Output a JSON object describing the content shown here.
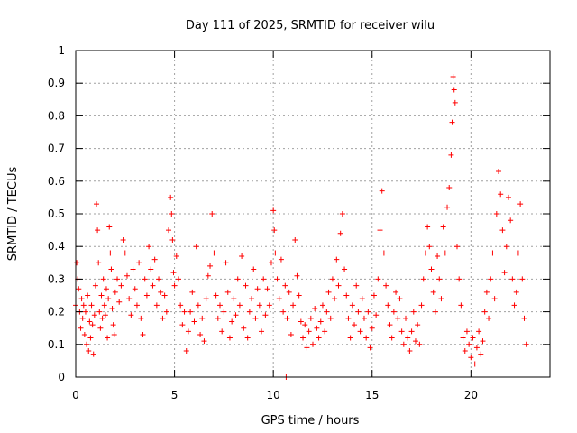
{
  "chart_data": {
    "type": "scatter",
    "title": "Day 111 of 2025, SRMTID for receiver wilu",
    "xlabel": "GPS time / hours",
    "ylabel": "SRMTID / TECUs",
    "xlim": [
      0,
      24
    ],
    "ylim": [
      0,
      1
    ],
    "x_ticks": [
      0,
      5,
      10,
      15,
      20
    ],
    "y_ticks": [
      0,
      0.1,
      0.2,
      0.3,
      0.4,
      0.5,
      0.6,
      0.7,
      0.8,
      0.9,
      1
    ],
    "grid": true,
    "marker": "+",
    "color": "#ff0000",
    "series": [
      {
        "name": "SRMTID",
        "points": [
          [
            0.0,
            0.22
          ],
          [
            0.05,
            0.35
          ],
          [
            0.1,
            0.3
          ],
          [
            0.15,
            0.27
          ],
          [
            0.2,
            0.2
          ],
          [
            0.25,
            0.15
          ],
          [
            0.3,
            0.24
          ],
          [
            0.35,
            0.18
          ],
          [
            0.4,
            0.22
          ],
          [
            0.45,
            0.13
          ],
          [
            0.5,
            0.2
          ],
          [
            0.55,
            0.1
          ],
          [
            0.6,
            0.25
          ],
          [
            0.65,
            0.08
          ],
          [
            0.7,
            0.17
          ],
          [
            0.75,
            0.12
          ],
          [
            0.8,
            0.22
          ],
          [
            0.85,
            0.16
          ],
          [
            0.9,
            0.07
          ],
          [
            0.95,
            0.19
          ],
          [
            1.0,
            0.28
          ],
          [
            1.05,
            0.53
          ],
          [
            1.1,
            0.45
          ],
          [
            1.15,
            0.35
          ],
          [
            1.2,
            0.2
          ],
          [
            1.25,
            0.15
          ],
          [
            1.3,
            0.25
          ],
          [
            1.35,
            0.18
          ],
          [
            1.4,
            0.3
          ],
          [
            1.45,
            0.22
          ],
          [
            1.5,
            0.19
          ],
          [
            1.55,
            0.27
          ],
          [
            1.6,
            0.12
          ],
          [
            1.65,
            0.24
          ],
          [
            1.7,
            0.46
          ],
          [
            1.75,
            0.38
          ],
          [
            1.8,
            0.33
          ],
          [
            1.85,
            0.21
          ],
          [
            1.9,
            0.16
          ],
          [
            1.95,
            0.13
          ],
          [
            2.0,
            0.26
          ],
          [
            2.1,
            0.3
          ],
          [
            2.2,
            0.23
          ],
          [
            2.3,
            0.28
          ],
          [
            2.4,
            0.42
          ],
          [
            2.5,
            0.38
          ],
          [
            2.6,
            0.31
          ],
          [
            2.7,
            0.24
          ],
          [
            2.8,
            0.19
          ],
          [
            2.9,
            0.33
          ],
          [
            3.0,
            0.27
          ],
          [
            3.1,
            0.22
          ],
          [
            3.2,
            0.35
          ],
          [
            3.3,
            0.18
          ],
          [
            3.4,
            0.13
          ],
          [
            3.5,
            0.3
          ],
          [
            3.6,
            0.25
          ],
          [
            3.7,
            0.4
          ],
          [
            3.8,
            0.33
          ],
          [
            3.9,
            0.28
          ],
          [
            4.0,
            0.36
          ],
          [
            4.1,
            0.22
          ],
          [
            4.2,
            0.3
          ],
          [
            4.3,
            0.26
          ],
          [
            4.4,
            0.18
          ],
          [
            4.5,
            0.25
          ],
          [
            4.6,
            0.2
          ],
          [
            4.7,
            0.45
          ],
          [
            4.8,
            0.55
          ],
          [
            4.85,
            0.5
          ],
          [
            4.9,
            0.42
          ],
          [
            4.95,
            0.32
          ],
          [
            5.0,
            0.28
          ],
          [
            5.1,
            0.37
          ],
          [
            5.2,
            0.3
          ],
          [
            5.3,
            0.22
          ],
          [
            5.4,
            0.16
          ],
          [
            5.5,
            0.2
          ],
          [
            5.6,
            0.08
          ],
          [
            5.7,
            0.14
          ],
          [
            5.8,
            0.2
          ],
          [
            5.9,
            0.26
          ],
          [
            6.0,
            0.17
          ],
          [
            6.1,
            0.4
          ],
          [
            6.2,
            0.22
          ],
          [
            6.3,
            0.13
          ],
          [
            6.4,
            0.18
          ],
          [
            6.5,
            0.11
          ],
          [
            6.6,
            0.24
          ],
          [
            6.7,
            0.31
          ],
          [
            6.8,
            0.34
          ],
          [
            6.9,
            0.5
          ],
          [
            7.0,
            0.38
          ],
          [
            7.1,
            0.25
          ],
          [
            7.2,
            0.18
          ],
          [
            7.3,
            0.22
          ],
          [
            7.4,
            0.14
          ],
          [
            7.5,
            0.2
          ],
          [
            7.6,
            0.35
          ],
          [
            7.7,
            0.26
          ],
          [
            7.8,
            0.12
          ],
          [
            7.9,
            0.17
          ],
          [
            8.0,
            0.24
          ],
          [
            8.1,
            0.19
          ],
          [
            8.2,
            0.3
          ],
          [
            8.3,
            0.22
          ],
          [
            8.4,
            0.37
          ],
          [
            8.5,
            0.15
          ],
          [
            8.6,
            0.28
          ],
          [
            8.7,
            0.12
          ],
          [
            8.8,
            0.2
          ],
          [
            8.9,
            0.24
          ],
          [
            9.0,
            0.33
          ],
          [
            9.1,
            0.18
          ],
          [
            9.2,
            0.27
          ],
          [
            9.3,
            0.22
          ],
          [
            9.4,
            0.14
          ],
          [
            9.5,
            0.3
          ],
          [
            9.6,
            0.19
          ],
          [
            9.7,
            0.27
          ],
          [
            9.8,
            0.22
          ],
          [
            9.9,
            0.35
          ],
          [
            10.0,
            0.51
          ],
          [
            10.05,
            0.45
          ],
          [
            10.1,
            0.38
          ],
          [
            10.2,
            0.3
          ],
          [
            10.3,
            0.24
          ],
          [
            10.4,
            0.36
          ],
          [
            10.5,
            0.2
          ],
          [
            10.6,
            0.28
          ],
          [
            10.65,
            0.0
          ],
          [
            10.7,
            0.18
          ],
          [
            10.8,
            0.26
          ],
          [
            10.9,
            0.13
          ],
          [
            11.0,
            0.22
          ],
          [
            11.1,
            0.42
          ],
          [
            11.2,
            0.31
          ],
          [
            11.3,
            0.25
          ],
          [
            11.4,
            0.17
          ],
          [
            11.5,
            0.12
          ],
          [
            11.6,
            0.16
          ],
          [
            11.7,
            0.09
          ],
          [
            11.8,
            0.14
          ],
          [
            11.9,
            0.18
          ],
          [
            12.0,
            0.1
          ],
          [
            12.1,
            0.21
          ],
          [
            12.2,
            0.15
          ],
          [
            12.3,
            0.12
          ],
          [
            12.4,
            0.17
          ],
          [
            12.5,
            0.22
          ],
          [
            12.6,
            0.14
          ],
          [
            12.7,
            0.2
          ],
          [
            12.8,
            0.26
          ],
          [
            12.9,
            0.18
          ],
          [
            13.0,
            0.3
          ],
          [
            13.1,
            0.24
          ],
          [
            13.2,
            0.36
          ],
          [
            13.3,
            0.28
          ],
          [
            13.4,
            0.44
          ],
          [
            13.5,
            0.5
          ],
          [
            13.6,
            0.33
          ],
          [
            13.7,
            0.25
          ],
          [
            13.8,
            0.18
          ],
          [
            13.9,
            0.12
          ],
          [
            14.0,
            0.22
          ],
          [
            14.1,
            0.16
          ],
          [
            14.2,
            0.28
          ],
          [
            14.3,
            0.2
          ],
          [
            14.4,
            0.14
          ],
          [
            14.5,
            0.24
          ],
          [
            14.6,
            0.18
          ],
          [
            14.7,
            0.12
          ],
          [
            14.8,
            0.2
          ],
          [
            14.9,
            0.09
          ],
          [
            15.0,
            0.15
          ],
          [
            15.1,
            0.25
          ],
          [
            15.2,
            0.19
          ],
          [
            15.3,
            0.3
          ],
          [
            15.4,
            0.45
          ],
          [
            15.5,
            0.57
          ],
          [
            15.6,
            0.38
          ],
          [
            15.7,
            0.28
          ],
          [
            15.8,
            0.22
          ],
          [
            15.9,
            0.16
          ],
          [
            16.0,
            0.12
          ],
          [
            16.1,
            0.2
          ],
          [
            16.2,
            0.26
          ],
          [
            16.3,
            0.18
          ],
          [
            16.4,
            0.24
          ],
          [
            16.5,
            0.14
          ],
          [
            16.6,
            0.1
          ],
          [
            16.7,
            0.18
          ],
          [
            16.8,
            0.12
          ],
          [
            16.9,
            0.08
          ],
          [
            17.0,
            0.14
          ],
          [
            17.1,
            0.2
          ],
          [
            17.2,
            0.11
          ],
          [
            17.3,
            0.16
          ],
          [
            17.4,
            0.1
          ],
          [
            17.5,
            0.22
          ],
          [
            17.6,
            0.3
          ],
          [
            17.7,
            0.38
          ],
          [
            17.8,
            0.46
          ],
          [
            17.9,
            0.4
          ],
          [
            18.0,
            0.33
          ],
          [
            18.1,
            0.26
          ],
          [
            18.2,
            0.2
          ],
          [
            18.3,
            0.37
          ],
          [
            18.4,
            0.3
          ],
          [
            18.5,
            0.24
          ],
          [
            18.6,
            0.46
          ],
          [
            18.7,
            0.38
          ],
          [
            18.8,
            0.52
          ],
          [
            18.9,
            0.58
          ],
          [
            19.0,
            0.68
          ],
          [
            19.05,
            0.78
          ],
          [
            19.1,
            0.92
          ],
          [
            19.15,
            0.88
          ],
          [
            19.2,
            0.84
          ],
          [
            19.3,
            0.4
          ],
          [
            19.4,
            0.3
          ],
          [
            19.5,
            0.22
          ],
          [
            19.6,
            0.12
          ],
          [
            19.7,
            0.08
          ],
          [
            19.8,
            0.14
          ],
          [
            19.9,
            0.1
          ],
          [
            20.0,
            0.06
          ],
          [
            20.1,
            0.12
          ],
          [
            20.2,
            0.04
          ],
          [
            20.3,
            0.09
          ],
          [
            20.4,
            0.14
          ],
          [
            20.5,
            0.07
          ],
          [
            20.6,
            0.11
          ],
          [
            20.7,
            0.2
          ],
          [
            20.8,
            0.26
          ],
          [
            20.9,
            0.18
          ],
          [
            21.0,
            0.3
          ],
          [
            21.1,
            0.38
          ],
          [
            21.2,
            0.24
          ],
          [
            21.3,
            0.5
          ],
          [
            21.4,
            0.63
          ],
          [
            21.5,
            0.56
          ],
          [
            21.6,
            0.45
          ],
          [
            21.7,
            0.32
          ],
          [
            21.8,
            0.4
          ],
          [
            21.9,
            0.55
          ],
          [
            22.0,
            0.48
          ],
          [
            22.1,
            0.3
          ],
          [
            22.2,
            0.22
          ],
          [
            22.3,
            0.26
          ],
          [
            22.4,
            0.38
          ],
          [
            22.5,
            0.53
          ],
          [
            22.6,
            0.3
          ],
          [
            22.7,
            0.18
          ],
          [
            22.8,
            0.1
          ]
        ]
      }
    ]
  }
}
